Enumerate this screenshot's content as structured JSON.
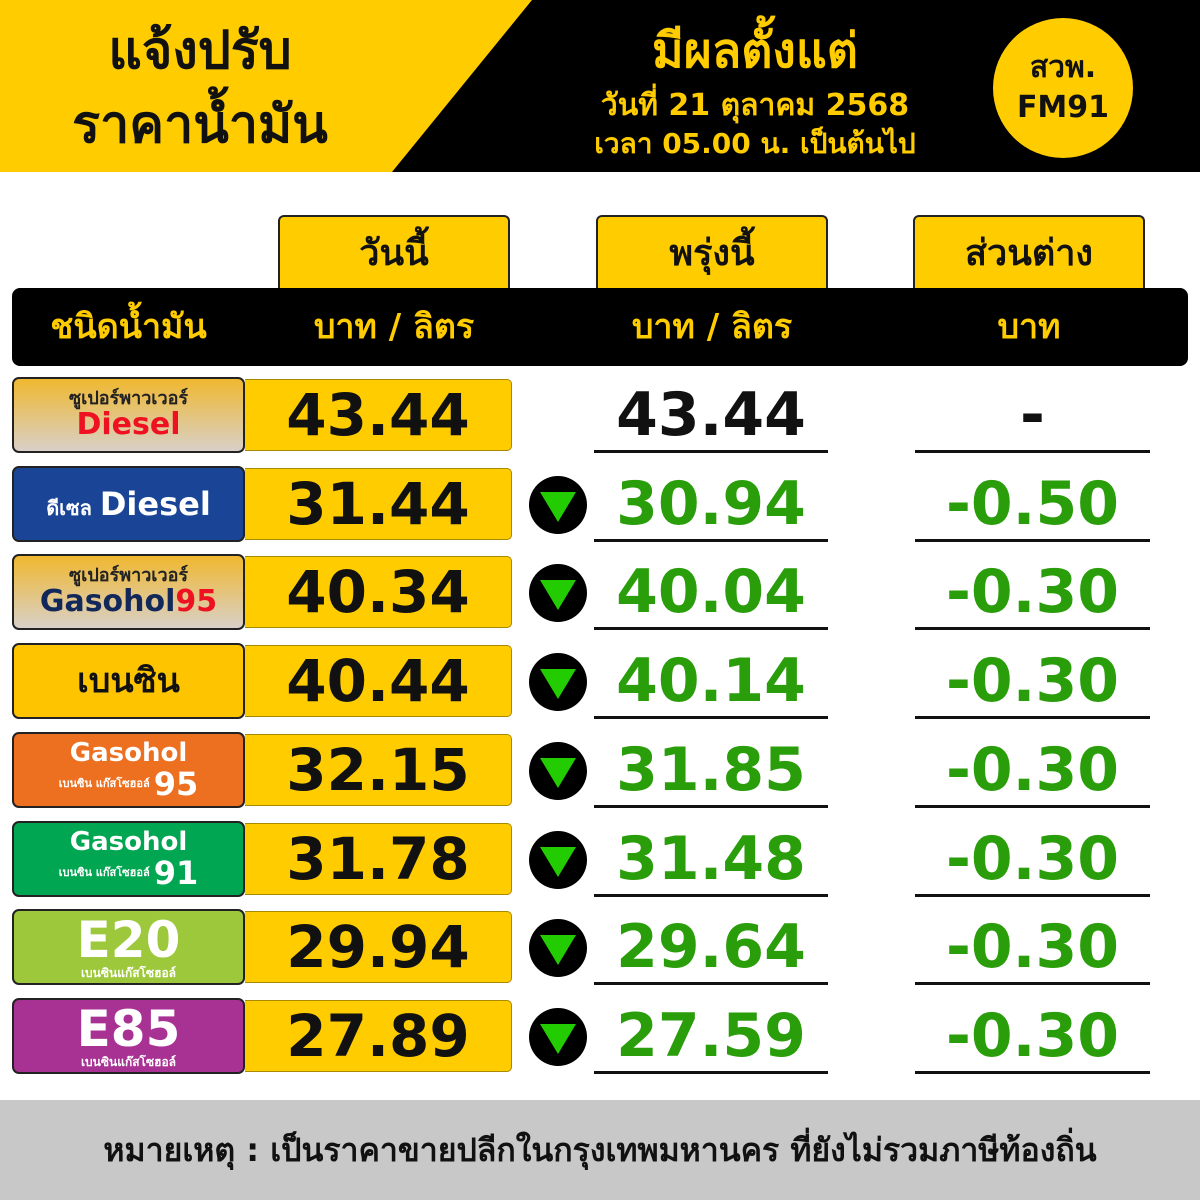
{
  "header": {
    "title_line1": "แจ้งปรับ",
    "title_line2": "ราคาน้ำมัน",
    "effective": "มีผลตั้งแต่",
    "date": "วันที่ 21 ตุลาคม 2568",
    "time": "เวลา 05.00 น. เป็นต้นไป",
    "badge_line1": "สวพ.",
    "badge_line2": "FM91"
  },
  "columns": {
    "today": "วันนี้",
    "tomorrow": "พรุ่งนี้",
    "diff": "ส่วนต่าง",
    "fuel_type": "ชนิดน้ำมัน",
    "unit_today": "บาท / ลิตร",
    "unit_tomorrow": "บาท / ลิตร",
    "unit_diff": "บาท"
  },
  "colors": {
    "yellow": "#ffcc00",
    "green": "#2a9d0a",
    "black": "#000000"
  },
  "rows": [
    {
      "label_small": "ซูเปอร์พาวเวอร์",
      "label_main": "Diesel",
      "label_suffix": "",
      "bg": "linear-gradient(#f0b830,#d8d0c8)",
      "small_color": "#222",
      "main_color": "#ee1122",
      "today": "43.44",
      "tomorrow": "43.44",
      "diff": "-",
      "change": "none"
    },
    {
      "label_small": "ดีเซล",
      "label_main": "Diesel",
      "label_suffix": "",
      "bg": "#1a4496",
      "small_color": "#fff",
      "main_color": "#fff",
      "inline": true,
      "today": "31.44",
      "tomorrow": "30.94",
      "diff": "-0.50",
      "change": "down"
    },
    {
      "label_small": "ซูเปอร์พาวเวอร์",
      "label_main": "Gasohol",
      "label_suffix": "95",
      "bg": "linear-gradient(#f0b830,#d8d0c8)",
      "small_color": "#222",
      "main_color": "#13285a",
      "suffix_color": "#ee1122",
      "today": "40.34",
      "tomorrow": "40.04",
      "diff": "-0.30",
      "change": "down"
    },
    {
      "label_small": "",
      "label_main": "เบนซิน",
      "label_suffix": "",
      "bg": "#ffc400",
      "small_color": "#111",
      "main_color": "#111",
      "today": "40.44",
      "tomorrow": "40.14",
      "diff": "-0.30",
      "change": "down"
    },
    {
      "label_small": "เบนซิน แก๊สโซฮอล์",
      "label_main": "Gasohol",
      "label_suffix": "95",
      "bg": "#ec7020",
      "small_color": "#fff",
      "main_color": "#fff",
      "suffix_color": "#fff",
      "gasohol": true,
      "today": "32.15",
      "tomorrow": "31.85",
      "diff": "-0.30",
      "change": "down"
    },
    {
      "label_small": "เบนซิน แก๊สโซฮอล์",
      "label_main": "Gasohol",
      "label_suffix": "91",
      "bg": "#00a651",
      "small_color": "#fff",
      "main_color": "#fff",
      "suffix_color": "#fff",
      "gasohol": true,
      "today": "31.78",
      "tomorrow": "31.48",
      "diff": "-0.30",
      "change": "down"
    },
    {
      "label_small": "เบนซินแก๊สโซฮอล์",
      "label_main": "E20",
      "label_suffix": "",
      "bg": "#9dc83c",
      "small_color": "#fff",
      "main_color": "#fff",
      "big": true,
      "today": "29.94",
      "tomorrow": "29.64",
      "diff": "-0.30",
      "change": "down"
    },
    {
      "label_small": "เบนซินแก๊สโซฮอล์",
      "label_main": "E85",
      "label_suffix": "",
      "bg": "#a83294",
      "small_color": "#fff",
      "main_color": "#fff",
      "big": true,
      "today": "27.89",
      "tomorrow": "27.59",
      "diff": "-0.30",
      "change": "down"
    }
  ],
  "footer": "หมายเหตุ : เป็นราคาขายปลีกในกรุงเทพมหานคร ที่ยังไม่รวมภาษีท้องถิ่น"
}
